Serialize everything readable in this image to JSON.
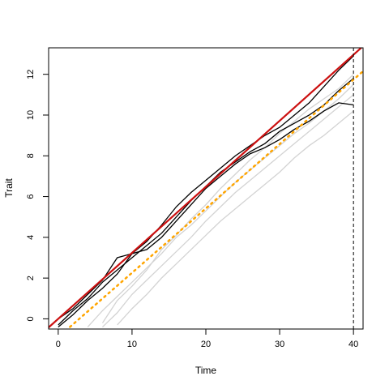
{
  "chart_data": {
    "type": "line",
    "x_label": "Time",
    "y_label": "Trait",
    "x": [
      0,
      2,
      4,
      6,
      8,
      10,
      12,
      14,
      16,
      18,
      20,
      22,
      24,
      26,
      28,
      30,
      32,
      34,
      36,
      38,
      40
    ],
    "series": [
      {
        "color": "#d3d3d3",
        "values": [
          null,
          null,
          -0.4,
          0.4,
          1.1,
          1.8,
          2.5,
          3.2,
          4.0,
          4.6,
          5.3,
          6.0,
          6.7,
          7.3,
          7.9,
          8.5,
          9.1,
          9.6,
          10.2,
          10.8,
          11.5
        ]
      },
      {
        "color": "#d3d3d3",
        "values": [
          null,
          null,
          null,
          -0.4,
          0.3,
          1.2,
          1.9,
          2.6,
          3.3,
          4.0,
          4.8,
          5.5,
          6.2,
          6.8,
          7.4,
          8.0,
          8.6,
          9.2,
          9.8,
          10.4,
          11.0
        ]
      },
      {
        "color": "#d3d3d3",
        "values": [
          null,
          null,
          null,
          -0.2,
          0.9,
          1.6,
          2.4,
          3.4,
          4.1,
          4.9,
          5.6,
          6.4,
          7.1,
          7.8,
          8.4,
          9.1,
          9.7,
          10.3,
          10.8,
          11.3,
          12.0
        ]
      },
      {
        "color": "#d3d3d3",
        "values": [
          null,
          null,
          null,
          null,
          -0.3,
          0.5,
          1.2,
          2.0,
          2.7,
          3.4,
          4.1,
          4.8,
          5.4,
          6.0,
          6.6,
          7.2,
          7.9,
          8.5,
          9.0,
          9.6,
          10.2
        ]
      },
      {
        "color": "#000000",
        "values": [
          0,
          0.5,
          1.2,
          1.9,
          3.0,
          3.2,
          3.8,
          4.6,
          5.5,
          6.2,
          6.8,
          7.4,
          8.0,
          8.5,
          9.0,
          9.4,
          10.0,
          10.6,
          11.4,
          12.2,
          12.9
        ]
      },
      {
        "color": "#000000",
        "values": [
          -0.3,
          0.4,
          1.0,
          1.8,
          2.4,
          3.0,
          3.6,
          4.2,
          5.0,
          5.8,
          6.5,
          7.2,
          7.7,
          8.2,
          8.6,
          9.2,
          9.6,
          10.0,
          10.5,
          11.2,
          11.8
        ]
      },
      {
        "color": "#000000",
        "values": [
          -0.4,
          0.2,
          0.9,
          1.5,
          2.2,
          3.2,
          3.4,
          4.0,
          4.8,
          5.6,
          6.4,
          7.0,
          7.6,
          8.1,
          8.4,
          8.8,
          9.3,
          9.7,
          10.2,
          10.6,
          10.5
        ]
      }
    ],
    "ablines": [
      {
        "intercept": 0,
        "slope": 0.324,
        "color": "#cc1111",
        "style": "solid"
      },
      {
        "intercept": -0.9,
        "slope": 0.316,
        "color": "#ffa500",
        "style": "dotted"
      }
    ],
    "vline": 40,
    "xlim": [
      -1.3,
      41.3
    ],
    "ylim": [
      -0.5,
      13.3
    ],
    "xticks": [
      0,
      10,
      20,
      30,
      40
    ],
    "yticks": [
      0,
      2,
      4,
      6,
      8,
      10,
      12
    ]
  }
}
